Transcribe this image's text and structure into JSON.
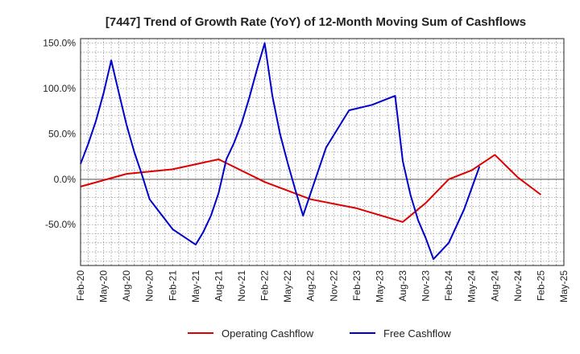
{
  "chart_data": {
    "type": "line",
    "title": "[7447]  Trend of Growth Rate (YoY) of 12-Month Moving Sum of Cashflows",
    "xlabel": "",
    "ylabel": "",
    "x_ticks": [
      "Feb-20",
      "May-20",
      "Aug-20",
      "Nov-20",
      "Feb-21",
      "May-21",
      "Aug-21",
      "Nov-21",
      "Feb-22",
      "May-22",
      "Aug-22",
      "Nov-22",
      "Feb-23",
      "May-23",
      "Aug-23",
      "Nov-23",
      "Feb-24",
      "May-24",
      "Aug-24",
      "Nov-24",
      "Feb-25",
      "May-25"
    ],
    "y_ticks": [
      150,
      100,
      50,
      0,
      -50
    ],
    "y_tick_labels": [
      "150.0%",
      "100.0%",
      "50.0%",
      "0.0%",
      "-50.0%"
    ],
    "ylim": [
      -95,
      155
    ],
    "grid": true,
    "legend_position": "bottom",
    "series": [
      {
        "name": "Operating Cashflow",
        "color": "#dd0000",
        "points": [
          [
            "Feb-20",
            -8
          ],
          [
            "Aug-20",
            6
          ],
          [
            "Feb-21",
            11
          ],
          [
            "Aug-21",
            22
          ],
          [
            "Feb-22",
            -3
          ],
          [
            "Aug-22",
            -22
          ],
          [
            "Feb-23",
            -32
          ],
          [
            "Aug-23",
            -47
          ],
          [
            "Nov-23",
            -26
          ],
          [
            "Feb-24",
            0
          ],
          [
            "May-24",
            10
          ],
          [
            "Aug-24",
            27
          ],
          [
            "Nov-24",
            2
          ],
          [
            "Feb-25",
            -17
          ]
        ]
      },
      {
        "name": "Free Cashflow",
        "color": "#0000cc",
        "points": [
          [
            "Feb-20",
            17
          ],
          [
            "Mar-20",
            39
          ],
          [
            "Apr-20",
            64
          ],
          [
            "May-20",
            95
          ],
          [
            "Jun-20",
            131
          ],
          [
            "Jul-20",
            95
          ],
          [
            "Aug-20",
            60
          ],
          [
            "Sep-20",
            30
          ],
          [
            "Oct-20",
            5
          ],
          [
            "Nov-20",
            -22
          ],
          [
            "Feb-21",
            -55
          ],
          [
            "May-21",
            -72
          ],
          [
            "Jun-21",
            -58
          ],
          [
            "Jul-21",
            -40
          ],
          [
            "Aug-21",
            -15
          ],
          [
            "Sep-21",
            22
          ],
          [
            "Oct-21",
            40
          ],
          [
            "Nov-21",
            62
          ],
          [
            "Dec-21",
            90
          ],
          [
            "Jan-22",
            121
          ],
          [
            "Feb-22",
            150
          ],
          [
            "Mar-22",
            92
          ],
          [
            "Apr-22",
            50
          ],
          [
            "May-22",
            18
          ],
          [
            "Jun-22",
            -12
          ],
          [
            "Jul-22",
            -40
          ],
          [
            "Oct-22",
            35
          ],
          [
            "Jan-23",
            76
          ],
          [
            "Apr-23",
            82
          ],
          [
            "Jul-23",
            92
          ],
          [
            "Aug-23",
            20
          ],
          [
            "Sep-23",
            -17
          ],
          [
            "Oct-23",
            -45
          ],
          [
            "Nov-23",
            -65
          ],
          [
            "Dec-23",
            -88
          ],
          [
            "Feb-24",
            -70
          ],
          [
            "Apr-24",
            -33
          ],
          [
            "Jun-24",
            14
          ]
        ]
      }
    ]
  }
}
